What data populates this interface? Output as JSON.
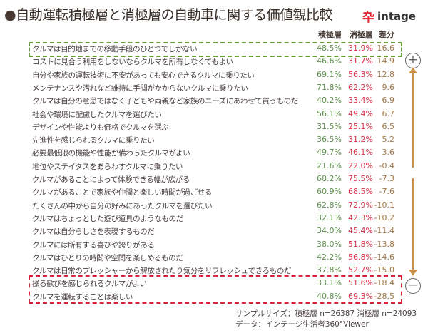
{
  "title": "自動運転積極層と消極層の自動車に関する価値観比較",
  "logo": "intage",
  "chart_data": {
    "type": "table",
    "title": "自動運転積極層と消極層の自動車に関する価値観比較",
    "columns": [
      "積極層",
      "消極層",
      "差分"
    ],
    "rows": [
      {
        "label": "クルマは目的地までの移動手段のひとつでしかない",
        "pos": "48.5%",
        "neg": "31.9%",
        "diff": "16.6"
      },
      {
        "label": "コストに見合う利用をしないならクルマを所有しなくてもよい",
        "pos": "46.6%",
        "neg": "31.7%",
        "diff": "14.9"
      },
      {
        "label": "自分や家族の運転技術に不安があっても安心できるクルマに乗りたい",
        "pos": "69.1%",
        "neg": "56.3%",
        "diff": "12.8"
      },
      {
        "label": "メンテナンスや汚れなど維持に手間がかからないクルマに乗りたい",
        "pos": "71.8%",
        "neg": "62.2%",
        "diff": "9.6"
      },
      {
        "label": "クルマは自分の意思ではなく子どもや両親など家族のニーズにあわせて買うものだ",
        "pos": "40.2%",
        "neg": "33.4%",
        "diff": "6.9"
      },
      {
        "label": "社会や環境に配慮したクルマを選びたい",
        "pos": "56.1%",
        "neg": "49.4%",
        "diff": "6.7"
      },
      {
        "label": "デザインや性能よりも価格でクルマを選ぶ",
        "pos": "31.5%",
        "neg": "25.1%",
        "diff": "6.5"
      },
      {
        "label": "先進性を感じられるクルマに乗りたい",
        "pos": "36.5%",
        "neg": "31.2%",
        "diff": "5.2"
      },
      {
        "label": "必要最低限の機能や性能が備わったクルマがよい",
        "pos": "49.7%",
        "neg": "46.1%",
        "diff": "3.6"
      },
      {
        "label": "地位やステイタスをあらわすクルマに乗りたい",
        "pos": "21.6%",
        "neg": "22.0%",
        "diff": "-0.4"
      },
      {
        "label": "クルマがあることによって体験できる幅が広がる",
        "pos": "68.2%",
        "neg": "75.5%",
        "diff": "-7.3"
      },
      {
        "label": "クルマがあることで家族や仲間と楽しい時間が過ごせる",
        "pos": "60.9%",
        "neg": "68.5%",
        "diff": "-7.6"
      },
      {
        "label": "たくさんの中から自分の好みにあったクルマを選びたい",
        "pos": "62.8%",
        "neg": "72.9%",
        "diff": "-10.1"
      },
      {
        "label": "クルマはちょっとした遊び道具のようなものだ",
        "pos": "32.1%",
        "neg": "42.3%",
        "diff": "-10.2"
      },
      {
        "label": "クルマは自分らしさを表現するものだ",
        "pos": "34.0%",
        "neg": "45.4%",
        "diff": "-11.4"
      },
      {
        "label": "クルマには所有する喜びや誇りがある",
        "pos": "38.0%",
        "neg": "51.8%",
        "diff": "-13.8"
      },
      {
        "label": "クルマはひとりの時間や空間を楽しめるものだ",
        "pos": "42.2%",
        "neg": "56.8%",
        "diff": "-14.6"
      },
      {
        "label": "クルマは日常のプレッシャーから解放されたり気分をリフレッシュできるものだ",
        "pos": "37.8%",
        "neg": "52.7%",
        "diff": "-15.0"
      },
      {
        "label": "操る歓びを感じられるクルマがよい",
        "pos": "33.1%",
        "neg": "51.6%",
        "diff": "-18.4"
      },
      {
        "label": "クルマを運転することは楽しい",
        "pos": "40.8%",
        "neg": "69.3%",
        "diff": "-28.5"
      }
    ],
    "colors": {
      "pos": "#5f8f4e",
      "neg": "#d8324a",
      "diff": "#a07848",
      "highlight_top": "#6a9a3a",
      "highlight_bottom": "#d8243a"
    }
  },
  "markers": {
    "plus": "+",
    "minus": "−"
  },
  "footer": {
    "sample": "サンプルサイズ：積極層 n=26387  消極層 n=24093",
    "source": "データ：インテージ生活者360°Viewer"
  }
}
